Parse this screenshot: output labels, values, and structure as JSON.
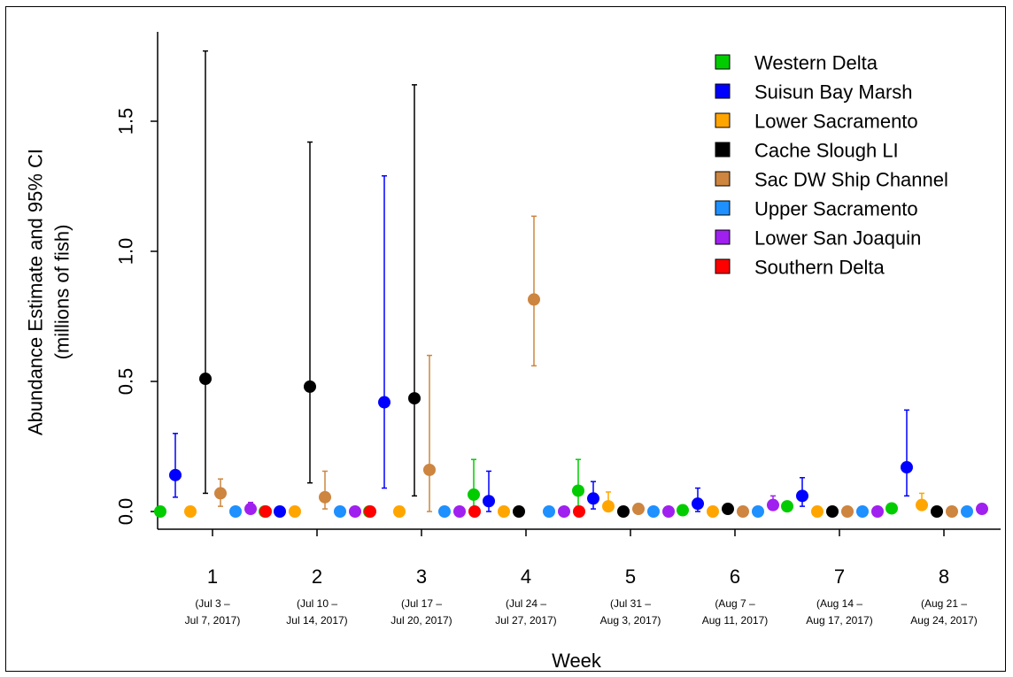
{
  "chart_data": {
    "type": "scatter",
    "xlabel": "Week",
    "ylabel": "Abundance Estimate and 95% CI",
    "ylabel2": "(millions of fish)",
    "ylim": [
      0,
      1.8
    ],
    "yticks": [
      "0.0",
      "0.5",
      "1.0",
      "1.5"
    ],
    "ytick_values": [
      0,
      0.5,
      1.0,
      1.5
    ],
    "legend_position": "top-right",
    "grid": false,
    "categories": [
      "1",
      "2",
      "3",
      "4",
      "5",
      "6",
      "7",
      "8"
    ],
    "category_dates": [
      [
        "(Jul 3 –",
        "Jul 7, 2017)"
      ],
      [
        "(Jul 10 –",
        "Jul 14, 2017)"
      ],
      [
        "(Jul 17 –",
        "Jul 20, 2017)"
      ],
      [
        "(Jul 24 –",
        "Jul 27, 2017)"
      ],
      [
        "(Jul 31 –",
        "Aug 3, 2017)"
      ],
      [
        "(Aug 7 –",
        "Aug 11, 2017)"
      ],
      [
        "(Aug 14 –",
        "Aug 17, 2017)"
      ],
      [
        "(Aug 21 –",
        "Aug 24, 2017)"
      ]
    ],
    "series": [
      {
        "name": "Western Delta",
        "color": "#00cc00",
        "values": [
          0,
          0,
          0,
          0.065,
          0.08,
          0.005,
          0.02,
          0.012
        ],
        "lower": [
          null,
          null,
          null,
          0.01,
          0.02,
          null,
          null,
          null
        ],
        "upper": [
          null,
          null,
          null,
          0.2,
          0.2,
          null,
          null,
          null
        ]
      },
      {
        "name": "Suisun Bay Marsh",
        "color": "#0000ff",
        "values": [
          0.14,
          0,
          0.42,
          0.04,
          0.05,
          0.03,
          0.06,
          0.17
        ],
        "lower": [
          0.055,
          null,
          0.09,
          0.0,
          0.01,
          0.0,
          0.02,
          0.06
        ],
        "upper": [
          0.3,
          null,
          1.29,
          0.155,
          0.115,
          0.09,
          0.13,
          0.39
        ]
      },
      {
        "name": "Lower Sacramento",
        "color": "#ffa500",
        "values": [
          0,
          0,
          0,
          0,
          0.02,
          0,
          0,
          0.025
        ],
        "lower": [
          null,
          null,
          null,
          null,
          null,
          null,
          null,
          null
        ],
        "upper": [
          null,
          null,
          null,
          null,
          0.075,
          null,
          null,
          0.07
        ]
      },
      {
        "name": "Cache Slough LI",
        "color": "#000000",
        "values": [
          0.51,
          0.48,
          0.435,
          0,
          0,
          0.01,
          0,
          0
        ],
        "lower": [
          0.07,
          0.11,
          0.06,
          null,
          null,
          null,
          null,
          null
        ],
        "upper": [
          1.77,
          1.42,
          1.64,
          null,
          null,
          null,
          null,
          null
        ]
      },
      {
        "name": "Sac DW Ship Channel",
        "color": "#cd853f",
        "values": [
          0.07,
          0.055,
          0.16,
          0.815,
          0.01,
          0,
          0,
          0
        ],
        "lower": [
          0.02,
          0.01,
          0.0,
          0.56,
          null,
          null,
          null,
          null
        ],
        "upper": [
          0.125,
          0.155,
          0.6,
          1.135,
          null,
          null,
          null,
          null
        ]
      },
      {
        "name": "Upper Sacramento",
        "color": "#1e90ff",
        "values": [
          0,
          0,
          0,
          0,
          0,
          0,
          0,
          0
        ],
        "lower": [
          null,
          null,
          null,
          null,
          null,
          null,
          null,
          null
        ],
        "upper": [
          null,
          null,
          null,
          null,
          null,
          null,
          null,
          null
        ]
      },
      {
        "name": "Lower San Joaquin",
        "color": "#a020f0",
        "values": [
          0.01,
          0,
          0,
          0,
          0,
          0.025,
          0,
          0.01
        ],
        "lower": [
          null,
          null,
          null,
          null,
          null,
          null,
          null,
          null
        ],
        "upper": [
          0.035,
          null,
          null,
          null,
          null,
          0.06,
          null,
          null
        ]
      },
      {
        "name": "Southern Delta",
        "color": "#ff0000",
        "values": [
          0,
          0,
          0,
          0,
          null,
          null,
          null,
          null
        ],
        "lower": [
          null,
          null,
          null,
          null,
          null,
          null,
          null,
          null
        ],
        "upper": [
          null,
          null,
          null,
          null,
          null,
          null,
          null,
          null
        ]
      }
    ]
  }
}
